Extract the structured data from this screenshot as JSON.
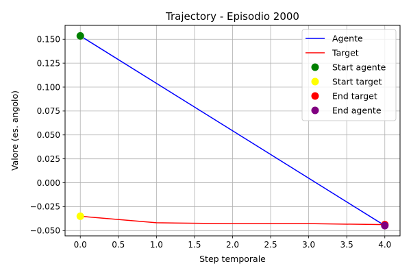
{
  "chart_data": {
    "type": "line",
    "title": "Trajectory - Episodio 2000",
    "xlabel": "Step temporale",
    "ylabel": "Valore (es. angolo)",
    "xlim": [
      -0.2,
      4.2
    ],
    "ylim": [
      -0.0555,
      0.1645
    ],
    "x_ticks": [
      0,
      0.5,
      1,
      1.5,
      2,
      2.5,
      3,
      3.5,
      4
    ],
    "x_tick_labels": [
      "0.0",
      "0.5",
      "1.0",
      "1.5",
      "2.0",
      "2.5",
      "3.0",
      "3.5",
      "4.0"
    ],
    "y_ticks": [
      -0.05,
      -0.025,
      0,
      0.025,
      0.05,
      0.075,
      0.1,
      0.125,
      0.15
    ],
    "y_tick_labels": [
      "−0.050",
      "−0.025",
      "0.000",
      "0.025",
      "0.050",
      "0.075",
      "0.100",
      "0.125",
      "0.150"
    ],
    "grid": true,
    "legend_position": "top-right",
    "series": [
      {
        "name": "Agente",
        "color": "#0000ff",
        "x": [
          0,
          4
        ],
        "y": [
          0.1535,
          -0.0448
        ]
      },
      {
        "name": "Target",
        "color": "#ff0000",
        "x": [
          0,
          1,
          2,
          3,
          4
        ],
        "y": [
          -0.035,
          -0.0418,
          -0.0428,
          -0.0427,
          -0.0438
        ]
      }
    ],
    "markers": [
      {
        "name": "Start agente",
        "color": "#008000",
        "x": 0,
        "y": 0.1535
      },
      {
        "name": "Start target",
        "color": "#ffff00",
        "x": 0,
        "y": -0.035
      },
      {
        "name": "End target",
        "color": "#ff0000",
        "x": 4,
        "y": -0.0438
      },
      {
        "name": "End agente",
        "color": "#800080",
        "x": 4,
        "y": -0.0448
      }
    ]
  }
}
